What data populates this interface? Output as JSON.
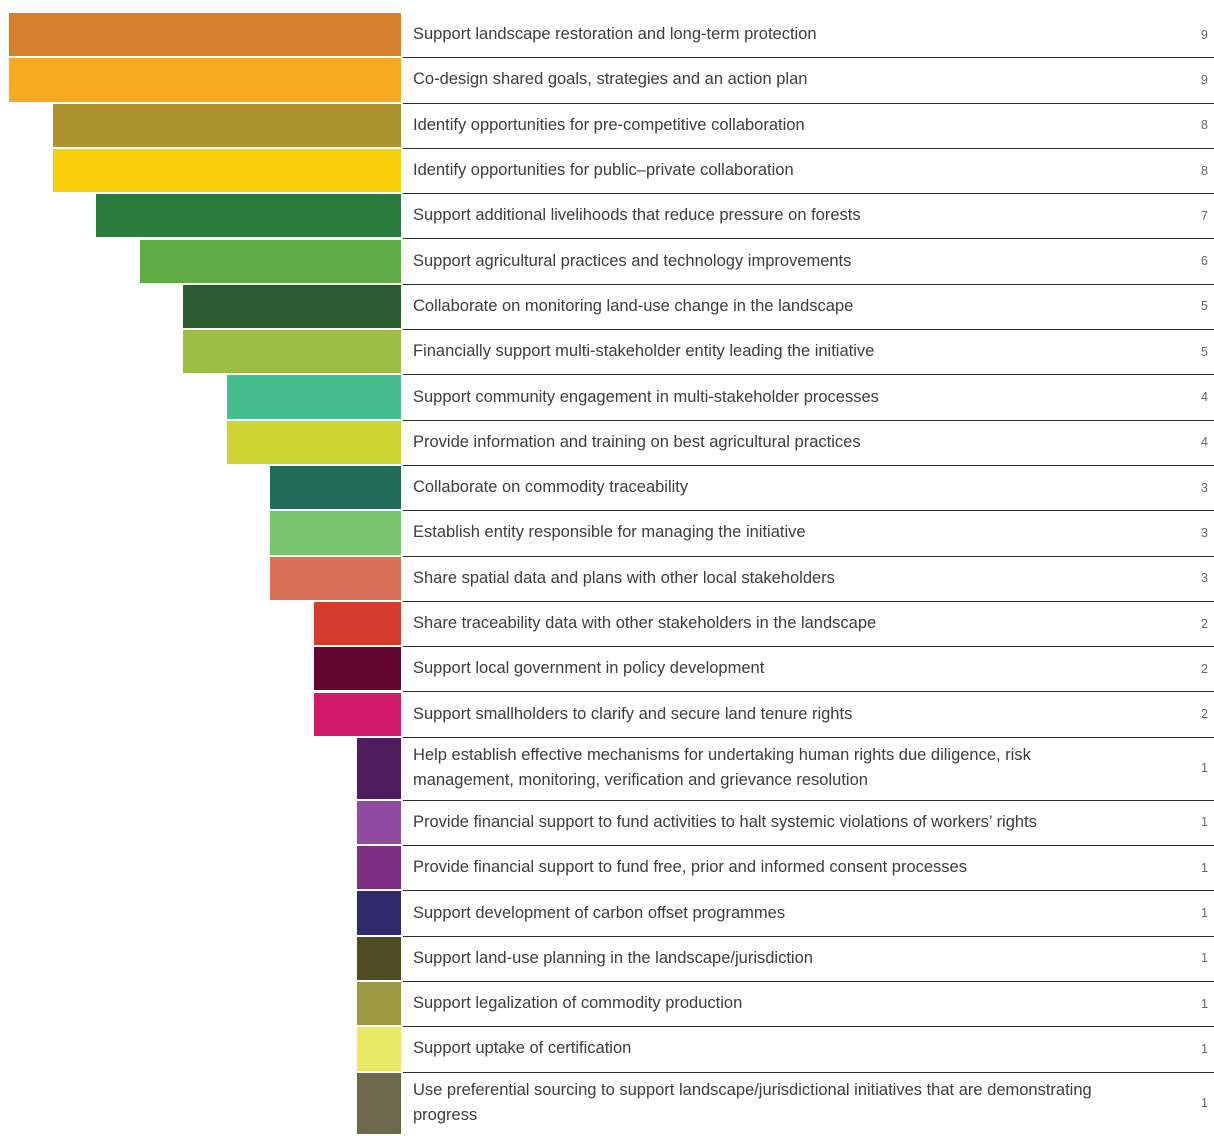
{
  "chart_data": {
    "type": "bar",
    "orientation": "horizontal",
    "title": "",
    "xlabel": "",
    "ylabel": "",
    "xlim": [
      0,
      9
    ],
    "grid": false,
    "legend": "none",
    "categories": [
      "Support landscape restoration and long-term protection",
      "Co-design shared goals, strategies and an action plan",
      "Identify opportunities for pre-competitive collaboration",
      "Identify opportunities for public–private collaboration",
      "Support additional livelihoods that reduce pressure on forests",
      "Support agricultural practices and technology improvements",
      "Collaborate on monitoring land-use change in the landscape",
      "Financially support multi-stakeholder entity leading the initiative",
      "Support community engagement in multi-stakeholder processes",
      "Provide information and training on best agricultural practices",
      "Collaborate on commodity traceability",
      "Establish entity responsible for managing the initiative",
      "Share spatial data and plans with other local stakeholders",
      "Share traceability data with other stakeholders in the landscape",
      "Support local government in policy development",
      "Support smallholders to clarify and secure land tenure rights",
      "Help establish effective mechanisms for undertaking human rights due diligence,  risk management, monitoring, verification and grievance resolution",
      "Provide financial support to fund activities to halt systemic violations of workers’ rights",
      "Provide financial support to fund free, prior and informed consent processes",
      "Support development of carbon offset programmes",
      "Support land-use planning in the landscape/jurisdiction",
      "Support legalization of commodity production",
      "Support uptake of certification",
      "Use preferential sourcing to support landscape/jurisdictional initiatives that are demonstrating progress"
    ],
    "values": [
      9,
      9,
      8,
      8,
      7,
      6,
      5,
      5,
      4,
      4,
      3,
      3,
      3,
      2,
      2,
      2,
      1,
      1,
      1,
      1,
      1,
      1,
      1,
      1
    ],
    "colors": [
      "#d6802e",
      "#f6a81e",
      "#ad9230",
      "#f8cf0b",
      "#2b7c3d",
      "#5fae45",
      "#2b5b30",
      "#9cbd43",
      "#45bd8c",
      "#cdd632",
      "#226c55",
      "#77c46f",
      "#d9705a",
      "#d43c2c",
      "#610730",
      "#d21b6a",
      "#4f1d5e",
      "#914ba0",
      "#7f2c83",
      "#312a6a",
      "#4e4c22",
      "#9c9a44",
      "#e8e862",
      "#6b6a4d"
    ]
  }
}
